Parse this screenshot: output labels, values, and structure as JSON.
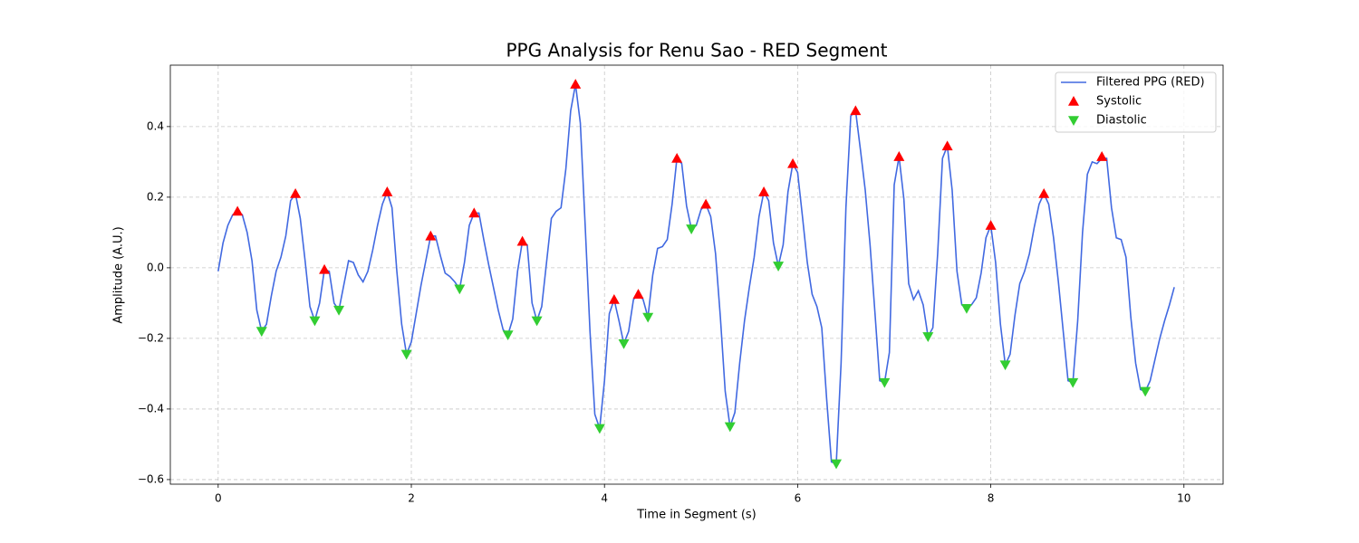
{
  "chart_data": {
    "type": "line",
    "title": "PPG Analysis for Renu Sao - RED Segment",
    "x_label": "Time in Segment (s)",
    "y_label": "Amplitude (A.U.)",
    "xlim": [
      -0.4955,
      10.4055
    ],
    "ylim": [
      -0.613,
      0.574
    ],
    "xticks": [
      0,
      2,
      4,
      6,
      8,
      10
    ],
    "yticks": [
      {
        "value": -0.6,
        "label": "−0.6"
      },
      {
        "value": -0.4,
        "label": "−0.4"
      },
      {
        "value": -0.2,
        "label": "−0.2"
      },
      {
        "value": 0,
        "label": "0.0"
      },
      {
        "value": 0.2,
        "label": "0.2"
      },
      {
        "value": 0.4,
        "label": "0.4"
      }
    ],
    "grid": true,
    "legend": "upper right",
    "series": [
      {
        "name": "Filtered PPG (RED)",
        "type": "line",
        "color": "#4169e1",
        "x": [
          0,
          0.05,
          0.1,
          0.15,
          0.2,
          0.25,
          0.3,
          0.35,
          0.4,
          0.45,
          0.5,
          0.55,
          0.6,
          0.65,
          0.7,
          0.75,
          0.8,
          0.85,
          0.9,
          0.95,
          1,
          1.05,
          1.1,
          1.15,
          1.2,
          1.25,
          1.3,
          1.35,
          1.4,
          1.45,
          1.5,
          1.55,
          1.6,
          1.65,
          1.7,
          1.75,
          1.8,
          1.85,
          1.9,
          1.95,
          2,
          2.05,
          2.1,
          2.15,
          2.2,
          2.25,
          2.3,
          2.35,
          2.4,
          2.45,
          2.5,
          2.55,
          2.6,
          2.65,
          2.7,
          2.75,
          2.8,
          2.85,
          2.9,
          2.95,
          3,
          3.05,
          3.1,
          3.15,
          3.2,
          3.25,
          3.3,
          3.35,
          3.4,
          3.45,
          3.5,
          3.55,
          3.6,
          3.65,
          3.7,
          3.75,
          3.8,
          3.85,
          3.9,
          3.95,
          4,
          4.05,
          4.1,
          4.15,
          4.2,
          4.25,
          4.3,
          4.35,
          4.4,
          4.45,
          4.5,
          4.55,
          4.6,
          4.65,
          4.7,
          4.75,
          4.8,
          4.85,
          4.9,
          4.95,
          5,
          5.05,
          5.1,
          5.15,
          5.2,
          5.25,
          5.3,
          5.35,
          5.4,
          5.45,
          5.5,
          5.55,
          5.6,
          5.65,
          5.7,
          5.75,
          5.8,
          5.85,
          5.9,
          5.95,
          6,
          6.05,
          6.1,
          6.15,
          6.2,
          6.25,
          6.3,
          6.35,
          6.4,
          6.45,
          6.5,
          6.55,
          6.6,
          6.65,
          6.7,
          6.75,
          6.8,
          6.85,
          6.9,
          6.95,
          7,
          7.05,
          7.1,
          7.15,
          7.2,
          7.25,
          7.3,
          7.35,
          7.4,
          7.45,
          7.5,
          7.55,
          7.6,
          7.65,
          7.7,
          7.75,
          7.8,
          7.85,
          7.9,
          7.95,
          8,
          8.05,
          8.1,
          8.15,
          8.2,
          8.25,
          8.3,
          8.35,
          8.4,
          8.45,
          8.5,
          8.55,
          8.6,
          8.65,
          8.7,
          8.75,
          8.8,
          8.85,
          8.9,
          8.95,
          9,
          9.05,
          9.1,
          9.15,
          9.2,
          9.25,
          9.3,
          9.35,
          9.4,
          9.45,
          9.5,
          9.55,
          9.6,
          9.65,
          9.7,
          9.75,
          9.8,
          9.85,
          9.9
        ],
        "values": [
          -0.01,
          0.07,
          0.12,
          0.15,
          0.16,
          0.15,
          0.1,
          0.02,
          -0.12,
          -0.18,
          -0.16,
          -0.08,
          -0.01,
          0.03,
          0.09,
          0.19,
          0.21,
          0.14,
          0.02,
          -0.11,
          -0.15,
          -0.1,
          -0.005,
          -0.01,
          -0.1,
          -0.12,
          -0.05,
          0.02,
          0.015,
          -0.02,
          -0.04,
          -0.01,
          0.05,
          0.12,
          0.18,
          0.215,
          0.17,
          -0.01,
          -0.16,
          -0.245,
          -0.21,
          -0.13,
          -0.05,
          0.02,
          0.09,
          0.09,
          0.035,
          -0.015,
          -0.025,
          -0.04,
          -0.06,
          0.015,
          0.12,
          0.155,
          0.155,
          0.08,
          0.01,
          -0.055,
          -0.12,
          -0.175,
          -0.19,
          -0.145,
          -0.01,
          0.075,
          0.065,
          -0.1,
          -0.15,
          -0.11,
          0.015,
          0.14,
          0.16,
          0.17,
          0.28,
          0.445,
          0.52,
          0.41,
          0.12,
          -0.18,
          -0.415,
          -0.455,
          -0.32,
          -0.13,
          -0.09,
          -0.15,
          -0.215,
          -0.18,
          -0.09,
          -0.075,
          -0.09,
          -0.14,
          -0.02,
          0.055,
          0.06,
          0.08,
          0.18,
          0.31,
          0.295,
          0.175,
          0.11,
          0.12,
          0.165,
          0.18,
          0.145,
          0.04,
          -0.14,
          -0.35,
          -0.45,
          -0.41,
          -0.27,
          -0.15,
          -0.055,
          0.03,
          0.145,
          0.215,
          0.19,
          0.07,
          0.005,
          0.065,
          0.215,
          0.295,
          0.27,
          0.145,
          0.015,
          -0.075,
          -0.11,
          -0.17,
          -0.37,
          -0.55,
          -0.555,
          -0.27,
          0.17,
          0.43,
          0.445,
          0.335,
          0.22,
          0.065,
          -0.125,
          -0.32,
          -0.325,
          -0.24,
          0.235,
          0.315,
          0.195,
          -0.045,
          -0.09,
          -0.065,
          -0.105,
          -0.195,
          -0.17,
          0.04,
          0.31,
          0.345,
          0.22,
          -0.01,
          -0.105,
          -0.115,
          -0.105,
          -0.085,
          -0.015,
          0.085,
          0.12,
          0.015,
          -0.16,
          -0.275,
          -0.245,
          -0.135,
          -0.045,
          -0.01,
          0.04,
          0.115,
          0.18,
          0.21,
          0.18,
          0.085,
          -0.04,
          -0.18,
          -0.32,
          -0.325,
          -0.15,
          0.1,
          0.265,
          0.3,
          0.295,
          0.31,
          0.31,
          0.17,
          0.085,
          0.08,
          0.03,
          -0.14,
          -0.27,
          -0.345,
          -0.35,
          -0.32,
          -0.26,
          -0.2,
          -0.15,
          -0.105,
          -0.055
        ]
      },
      {
        "name": "Systolic",
        "type": "scatter",
        "marker": "triangle-up",
        "color": "#ff0000",
        "x": [
          0.2,
          0.8,
          1.1,
          1.75,
          2.2,
          2.65,
          3.15,
          3.7,
          4.1,
          4.35,
          4.75,
          5.05,
          5.65,
          5.95,
          6.6,
          7.05,
          7.55,
          8.0,
          8.55,
          9.15
        ],
        "values": [
          0.16,
          0.21,
          -0.005,
          0.215,
          0.09,
          0.155,
          0.075,
          0.52,
          -0.09,
          -0.075,
          0.31,
          0.18,
          0.215,
          0.295,
          0.445,
          0.315,
          0.345,
          0.12,
          0.21,
          0.315
        ]
      },
      {
        "name": "Diastolic",
        "type": "scatter",
        "marker": "triangle-down",
        "color": "#32cd32",
        "x": [
          0.45,
          1.0,
          1.25,
          1.95,
          2.5,
          3.0,
          3.3,
          3.95,
          4.2,
          4.45,
          4.9,
          5.3,
          5.8,
          6.4,
          6.9,
          7.35,
          7.75,
          8.15,
          8.85,
          9.6
        ],
        "values": [
          -0.18,
          -0.15,
          -0.12,
          -0.245,
          -0.06,
          -0.19,
          -0.15,
          -0.455,
          -0.215,
          -0.14,
          0.11,
          -0.45,
          0.005,
          -0.555,
          -0.325,
          -0.195,
          -0.115,
          -0.275,
          -0.325,
          -0.35
        ]
      }
    ]
  }
}
